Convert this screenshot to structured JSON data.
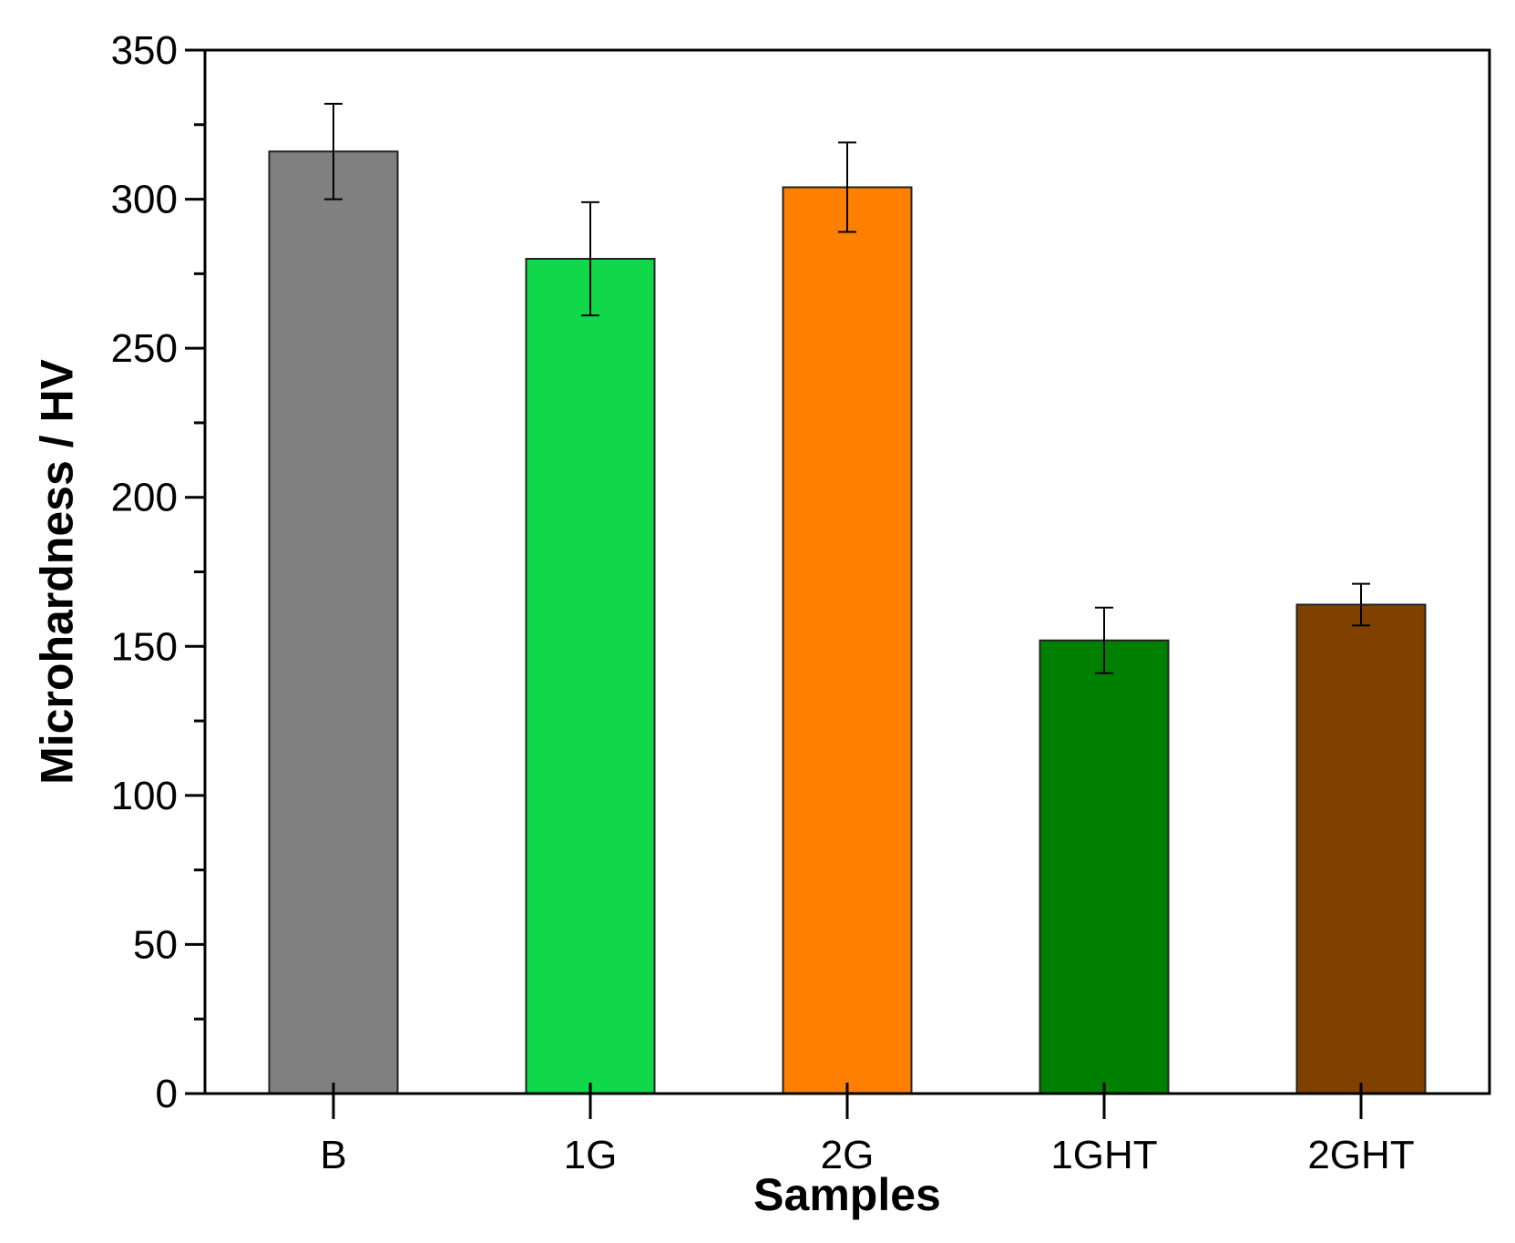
{
  "chart_data": {
    "type": "bar",
    "title": "",
    "xlabel": "Samples",
    "ylabel": "Microhardness / HV",
    "ylim": [
      0,
      350
    ],
    "yticks": [
      0,
      50,
      100,
      150,
      200,
      250,
      300,
      350
    ],
    "grid": false,
    "categories": [
      "B",
      "1G",
      "2G",
      "1GHT",
      "2GHT"
    ],
    "values": [
      316,
      280,
      304,
      152,
      164
    ],
    "errors": [
      16,
      19,
      15,
      11,
      7
    ],
    "colors": [
      "#808080",
      "#10d84a",
      "#ff8000",
      "#008000",
      "#804000"
    ]
  }
}
